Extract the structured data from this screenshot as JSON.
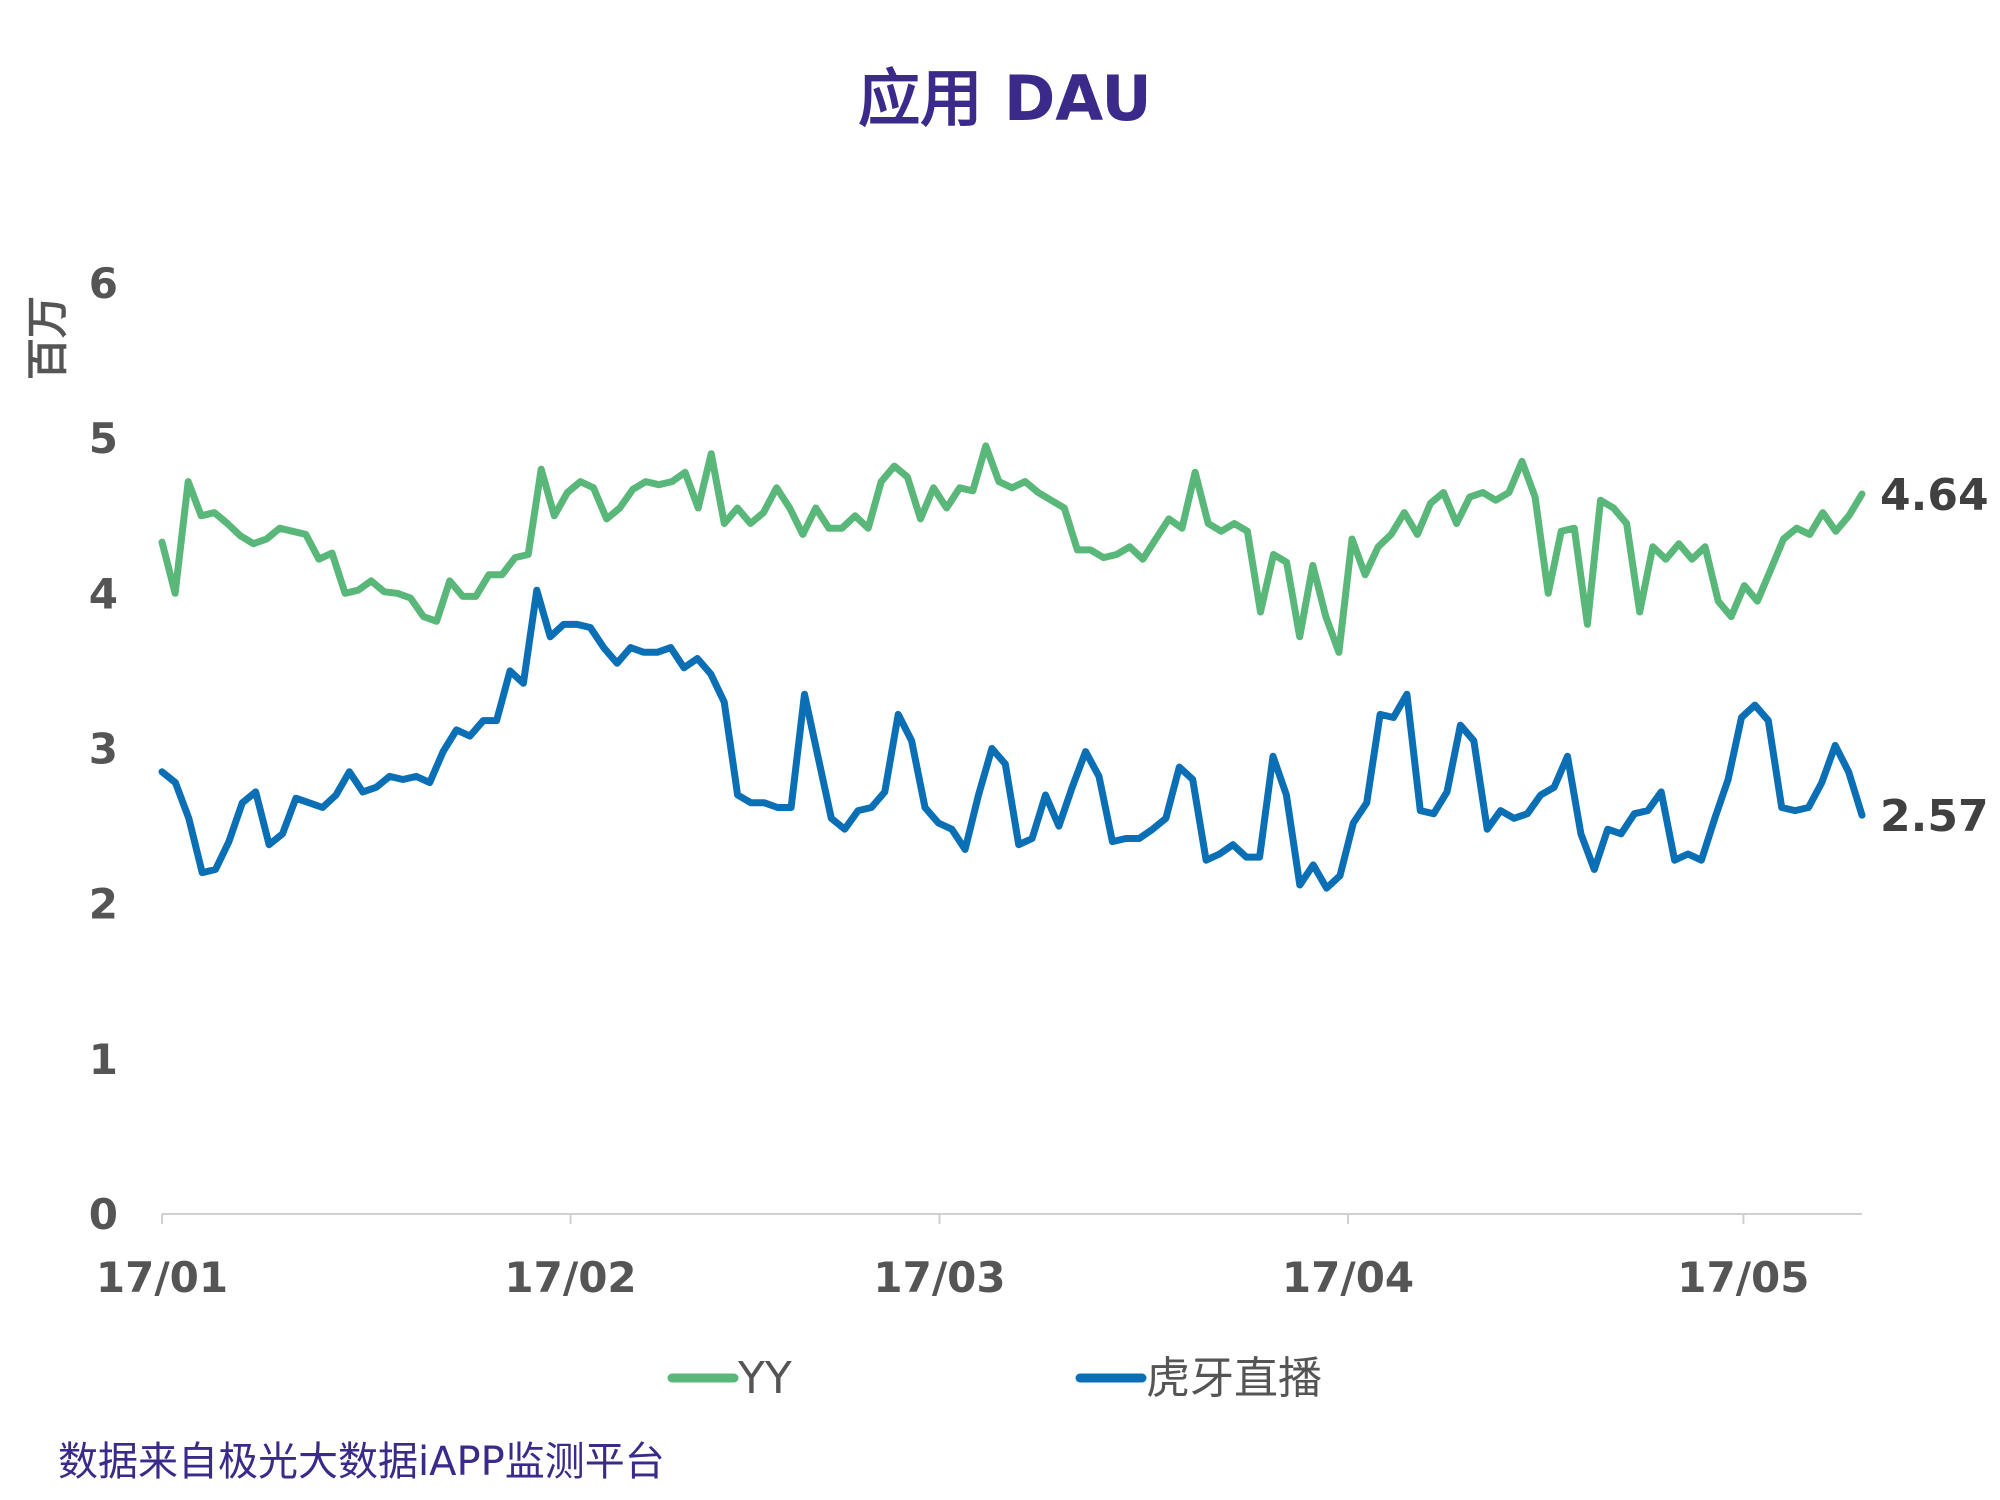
{
  "chart_data": {
    "type": "line",
    "title": "应用 DAU",
    "ylabel": "百万",
    "ylim": [
      0,
      6
    ],
    "yticks": [
      "0",
      "1",
      "2",
      "3",
      "4",
      "5",
      "6"
    ],
    "x_start": "2017-01-01",
    "x_end": "2017-05-10",
    "xticks": [
      {
        "date": "2017-01-01",
        "label": "17/01"
      },
      {
        "date": "2017-02-01",
        "label": "17/02"
      },
      {
        "date": "2017-03-01",
        "label": "17/03"
      },
      {
        "date": "2017-04-01",
        "label": "17/04"
      },
      {
        "date": "2017-05-01",
        "label": "17/05"
      }
    ],
    "grid": false,
    "legend_position": "bottom",
    "series": [
      {
        "name": "YY",
        "color": "#5ab77a",
        "end_label": "4.64",
        "values": [
          4.33,
          4.0,
          4.72,
          4.5,
          4.52,
          4.45,
          4.37,
          4.32,
          4.35,
          4.42,
          4.4,
          4.38,
          4.22,
          4.26,
          4.0,
          4.02,
          4.08,
          4.01,
          4.0,
          3.97,
          3.85,
          3.82,
          4.08,
          3.98,
          3.98,
          4.12,
          4.12,
          4.23,
          4.25,
          4.8,
          4.5,
          4.65,
          4.72,
          4.68,
          4.48,
          4.55,
          4.67,
          4.72,
          4.7,
          4.72,
          4.78,
          4.55,
          4.9,
          4.45,
          4.55,
          4.45,
          4.52,
          4.68,
          4.55,
          4.38,
          4.55,
          4.42,
          4.42,
          4.5,
          4.42,
          4.72,
          4.82,
          4.75,
          4.48,
          4.68,
          4.55,
          4.68,
          4.66,
          4.95,
          4.72,
          4.68,
          4.72,
          4.65,
          4.6,
          4.55,
          4.28,
          4.28,
          4.23,
          4.25,
          4.3,
          4.22,
          4.35,
          4.48,
          4.42,
          4.78,
          4.45,
          4.4,
          4.45,
          4.4,
          3.88,
          4.25,
          4.2,
          3.72,
          4.18,
          3.85,
          3.62,
          4.35,
          4.12,
          4.3,
          4.38,
          4.52,
          4.38,
          4.58,
          4.65,
          4.45,
          4.62,
          4.65,
          4.6,
          4.65,
          4.85,
          4.62,
          4.0,
          4.4,
          4.42,
          3.8,
          4.6,
          4.55,
          4.45,
          3.88,
          4.3,
          4.22,
          4.32,
          4.22,
          4.3,
          3.95,
          3.85,
          4.05,
          3.95,
          4.15,
          4.35,
          4.42,
          4.38,
          4.52,
          4.4,
          4.5,
          4.64
        ]
      },
      {
        "name": "虎牙直播",
        "color": "#0b6fb5",
        "end_label": "2.57",
        "values": [
          2.85,
          2.78,
          2.55,
          2.2,
          2.22,
          2.4,
          2.65,
          2.72,
          2.38,
          2.45,
          2.68,
          2.65,
          2.62,
          2.7,
          2.85,
          2.72,
          2.75,
          2.82,
          2.8,
          2.82,
          2.78,
          2.98,
          3.12,
          3.08,
          3.18,
          3.18,
          3.5,
          3.42,
          4.02,
          3.72,
          3.8,
          3.8,
          3.78,
          3.65,
          3.55,
          3.65,
          3.62,
          3.62,
          3.65,
          3.52,
          3.58,
          3.48,
          3.3,
          2.7,
          2.65,
          2.65,
          2.62,
          2.62,
          3.35,
          2.95,
          2.55,
          2.48,
          2.6,
          2.62,
          2.72,
          3.22,
          3.05,
          2.62,
          2.52,
          2.48,
          2.35,
          2.7,
          3.0,
          2.9,
          2.38,
          2.42,
          2.7,
          2.5,
          2.75,
          2.98,
          2.82,
          2.4,
          2.42,
          2.42,
          2.48,
          2.55,
          2.88,
          2.8,
          2.28,
          2.32,
          2.38,
          2.3,
          2.3,
          2.95,
          2.7,
          2.12,
          2.25,
          2.1,
          2.18,
          2.52,
          2.65,
          3.22,
          3.2,
          3.35,
          2.6,
          2.58,
          2.72,
          3.15,
          3.05,
          2.48,
          2.6,
          2.55,
          2.58,
          2.7,
          2.75,
          2.95,
          2.45,
          2.22,
          2.48,
          2.45,
          2.58,
          2.6,
          2.72,
          2.28,
          2.32,
          2.28,
          2.55,
          2.8,
          3.2,
          3.28,
          3.18,
          2.62,
          2.6,
          2.62,
          2.78,
          3.02,
          2.85,
          2.57
        ]
      }
    ]
  },
  "source_note": "数据来自极光大数据iAPP监测平台"
}
